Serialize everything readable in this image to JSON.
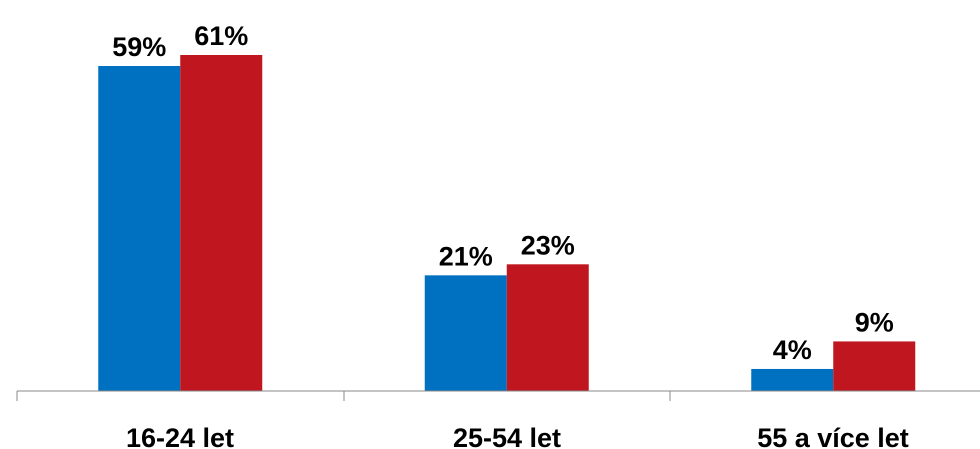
{
  "chart_data": {
    "type": "bar",
    "title": "",
    "xlabel": "",
    "ylabel": "",
    "categories": [
      "16-24 let",
      "25-54 let",
      "55 a více let"
    ],
    "series": [
      {
        "color": "#0070c0",
        "values": [
          59,
          21,
          4
        ],
        "labels": [
          "59%",
          "21%",
          "4%"
        ]
      },
      {
        "color": "#c0161f",
        "values": [
          61,
          23,
          9
        ],
        "labels": [
          "61%",
          "23%",
          "9%"
        ]
      }
    ],
    "ylim": [
      0,
      61
    ],
    "grid": false,
    "legend": "none"
  }
}
